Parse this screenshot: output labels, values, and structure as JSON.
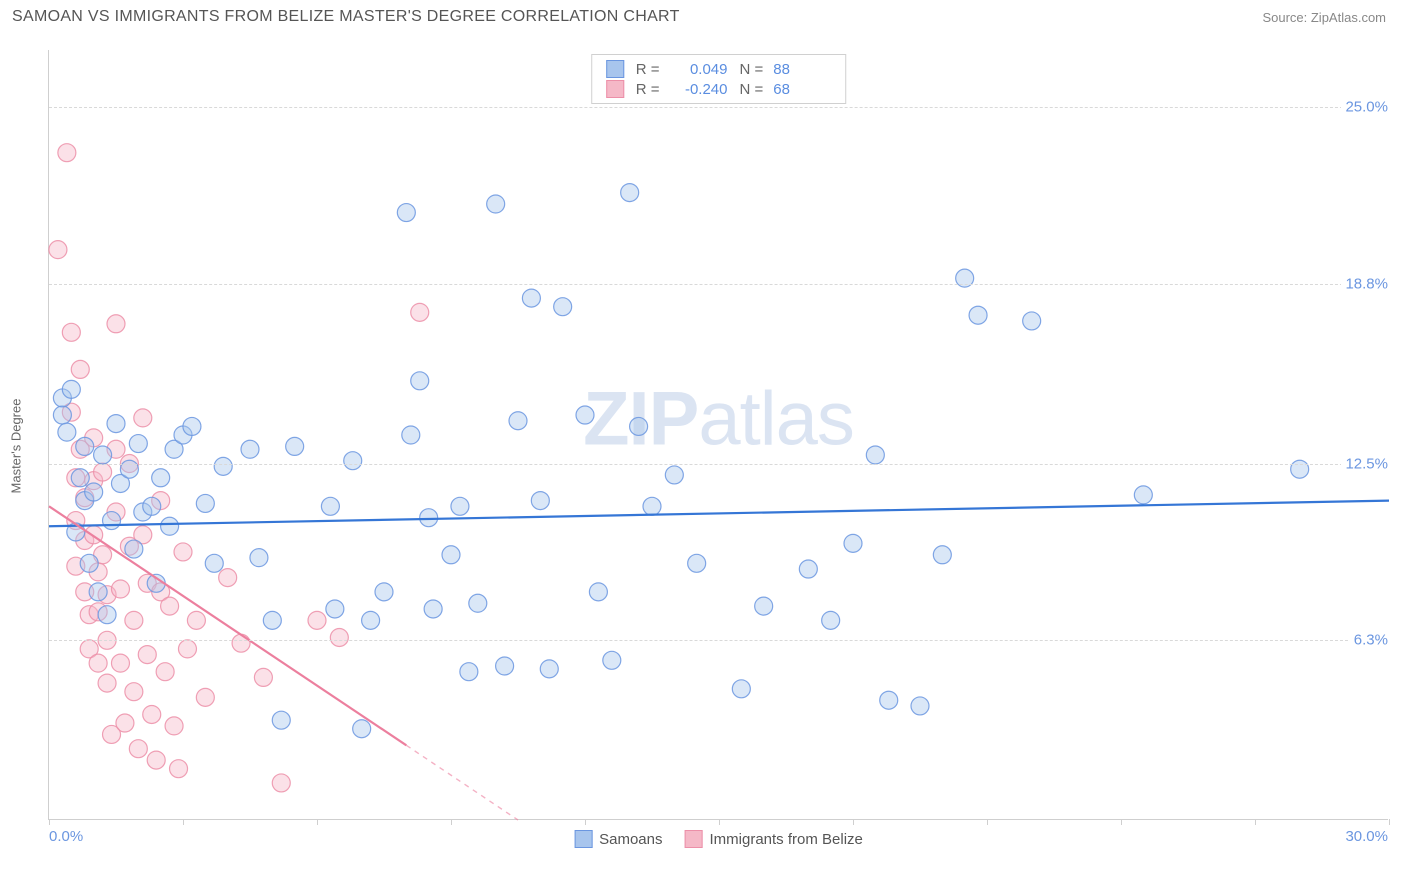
{
  "title": "SAMOAN VS IMMIGRANTS FROM BELIZE MASTER'S DEGREE CORRELATION CHART",
  "source": "Source: ZipAtlas.com",
  "ylabel": "Master's Degree",
  "watermark": {
    "bold": "ZIP",
    "light": "atlas"
  },
  "chart": {
    "type": "scatter",
    "xlim": [
      0.0,
      30.0
    ],
    "ylim": [
      0.0,
      27.0
    ],
    "x_axis": {
      "min_label": "0.0%",
      "max_label": "30.0%",
      "tick_positions": [
        0,
        3,
        6,
        9,
        12,
        15,
        18,
        21,
        24,
        27,
        30
      ]
    },
    "y_axis": {
      "gridlines": [
        6.3,
        12.5,
        18.8,
        25.0
      ],
      "labels": [
        "6.3%",
        "12.5%",
        "18.8%",
        "25.0%"
      ]
    },
    "background_color": "#ffffff",
    "grid_color": "#d9d9d9",
    "axis_color": "#cfcfcf",
    "marker_radius": 9,
    "marker_opacity": 0.42,
    "marker_stroke_opacity": 0.85,
    "line_width": 2.2
  },
  "series": [
    {
      "name": "Samoans",
      "color_fill": "#a8c5ed",
      "color_stroke": "#6b96e0",
      "line_color": "#3576d6",
      "R": "0.049",
      "N": "88",
      "trend": {
        "x1": 0.0,
        "y1": 10.3,
        "x2": 30.0,
        "y2": 11.2,
        "dashed_after": null
      },
      "points": [
        [
          0.3,
          14.2
        ],
        [
          0.3,
          14.8
        ],
        [
          0.4,
          13.6
        ],
        [
          0.5,
          15.1
        ],
        [
          0.6,
          10.1
        ],
        [
          0.7,
          12.0
        ],
        [
          0.8,
          11.2
        ],
        [
          0.8,
          13.1
        ],
        [
          0.9,
          9.0
        ],
        [
          1.0,
          11.5
        ],
        [
          1.1,
          8.0
        ],
        [
          1.2,
          12.8
        ],
        [
          1.3,
          7.2
        ],
        [
          1.4,
          10.5
        ],
        [
          1.5,
          13.9
        ],
        [
          1.6,
          11.8
        ],
        [
          1.8,
          12.3
        ],
        [
          1.9,
          9.5
        ],
        [
          2.0,
          13.2
        ],
        [
          2.1,
          10.8
        ],
        [
          2.3,
          11.0
        ],
        [
          2.4,
          8.3
        ],
        [
          2.5,
          12.0
        ],
        [
          2.7,
          10.3
        ],
        [
          2.8,
          13.0
        ],
        [
          3.0,
          13.5
        ],
        [
          3.2,
          13.8
        ],
        [
          3.5,
          11.1
        ],
        [
          3.7,
          9.0
        ],
        [
          3.9,
          12.4
        ],
        [
          4.5,
          13.0
        ],
        [
          4.7,
          9.2
        ],
        [
          5.0,
          7.0
        ],
        [
          5.2,
          3.5
        ],
        [
          5.5,
          13.1
        ],
        [
          6.3,
          11.0
        ],
        [
          6.4,
          7.4
        ],
        [
          6.8,
          12.6
        ],
        [
          7.0,
          3.2
        ],
        [
          7.2,
          7.0
        ],
        [
          7.5,
          8.0
        ],
        [
          8.0,
          21.3
        ],
        [
          8.1,
          13.5
        ],
        [
          8.3,
          15.4
        ],
        [
          8.5,
          10.6
        ],
        [
          8.6,
          7.4
        ],
        [
          9.0,
          9.3
        ],
        [
          9.2,
          11.0
        ],
        [
          9.4,
          5.2
        ],
        [
          9.6,
          7.6
        ],
        [
          10.0,
          21.6
        ],
        [
          10.2,
          5.4
        ],
        [
          10.5,
          14.0
        ],
        [
          10.8,
          18.3
        ],
        [
          11.0,
          11.2
        ],
        [
          11.2,
          5.3
        ],
        [
          11.5,
          18.0
        ],
        [
          12.0,
          14.2
        ],
        [
          12.3,
          8.0
        ],
        [
          12.6,
          5.6
        ],
        [
          13.0,
          22.0
        ],
        [
          13.2,
          13.8
        ],
        [
          13.5,
          11.0
        ],
        [
          14.0,
          12.1
        ],
        [
          14.5,
          9.0
        ],
        [
          15.5,
          4.6
        ],
        [
          16.0,
          7.5
        ],
        [
          17.0,
          8.8
        ],
        [
          17.5,
          7.0
        ],
        [
          18.0,
          9.7
        ],
        [
          18.5,
          12.8
        ],
        [
          18.8,
          4.2
        ],
        [
          19.5,
          4.0
        ],
        [
          20.0,
          9.3
        ],
        [
          20.5,
          19.0
        ],
        [
          20.8,
          17.7
        ],
        [
          22.0,
          17.5
        ],
        [
          24.5,
          11.4
        ],
        [
          28.0,
          12.3
        ]
      ]
    },
    {
      "name": "Immigrants from Belize",
      "color_fill": "#f5b8c7",
      "color_stroke": "#ec8fa8",
      "line_color": "#ec7f9e",
      "R": "-0.240",
      "N": "68",
      "trend": {
        "x1": 0.0,
        "y1": 11.0,
        "x2": 10.5,
        "y2": 0.0,
        "dashed_after": 8.0
      },
      "points": [
        [
          0.2,
          20.0
        ],
        [
          0.4,
          23.4
        ],
        [
          0.5,
          17.1
        ],
        [
          0.5,
          14.3
        ],
        [
          0.6,
          12.0
        ],
        [
          0.6,
          10.5
        ],
        [
          0.6,
          8.9
        ],
        [
          0.7,
          15.8
        ],
        [
          0.7,
          13.0
        ],
        [
          0.8,
          11.3
        ],
        [
          0.8,
          9.8
        ],
        [
          0.8,
          8.0
        ],
        [
          0.9,
          7.2
        ],
        [
          0.9,
          6.0
        ],
        [
          1.0,
          13.4
        ],
        [
          1.0,
          11.9
        ],
        [
          1.0,
          10.0
        ],
        [
          1.1,
          8.7
        ],
        [
          1.1,
          7.3
        ],
        [
          1.1,
          5.5
        ],
        [
          1.2,
          12.2
        ],
        [
          1.2,
          9.3
        ],
        [
          1.3,
          7.9
        ],
        [
          1.3,
          6.3
        ],
        [
          1.3,
          4.8
        ],
        [
          1.4,
          3.0
        ],
        [
          1.5,
          17.4
        ],
        [
          1.5,
          13.0
        ],
        [
          1.5,
          10.8
        ],
        [
          1.6,
          8.1
        ],
        [
          1.6,
          5.5
        ],
        [
          1.7,
          3.4
        ],
        [
          1.8,
          12.5
        ],
        [
          1.8,
          9.6
        ],
        [
          1.9,
          7.0
        ],
        [
          1.9,
          4.5
        ],
        [
          2.0,
          2.5
        ],
        [
          2.1,
          14.1
        ],
        [
          2.1,
          10.0
        ],
        [
          2.2,
          8.3
        ],
        [
          2.2,
          5.8
        ],
        [
          2.3,
          3.7
        ],
        [
          2.4,
          2.1
        ],
        [
          2.5,
          11.2
        ],
        [
          2.5,
          8.0
        ],
        [
          2.6,
          5.2
        ],
        [
          2.7,
          7.5
        ],
        [
          2.8,
          3.3
        ],
        [
          2.9,
          1.8
        ],
        [
          3.0,
          9.4
        ],
        [
          3.1,
          6.0
        ],
        [
          3.3,
          7.0
        ],
        [
          3.5,
          4.3
        ],
        [
          4.0,
          8.5
        ],
        [
          4.3,
          6.2
        ],
        [
          4.8,
          5.0
        ],
        [
          5.2,
          1.3
        ],
        [
          6.0,
          7.0
        ],
        [
          6.5,
          6.4
        ],
        [
          8.3,
          17.8
        ]
      ]
    }
  ],
  "legend_top": {
    "R_label": "R =",
    "N_label": "N ="
  },
  "legend_bottom": {
    "items": [
      "Samoans",
      "Immigrants from Belize"
    ]
  }
}
